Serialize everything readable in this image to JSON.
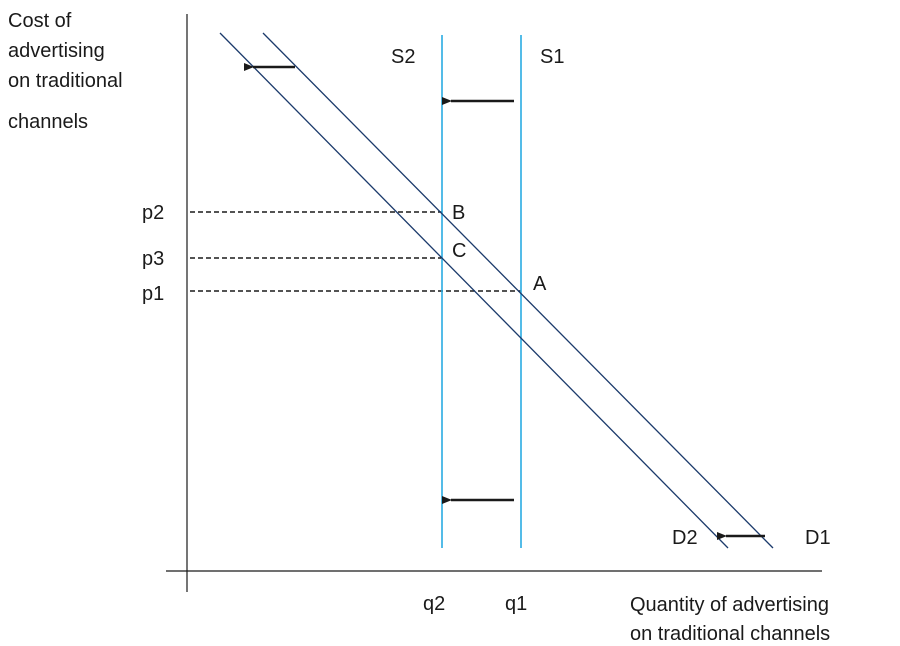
{
  "y_axis_label": [
    "Cost of",
    "advertising",
    "on traditional",
    "channels"
  ],
  "x_axis_label": [
    "Quantity of advertising",
    "on traditional channels"
  ],
  "prices": {
    "p2": "p2",
    "p3": "p3",
    "p1": "p1"
  },
  "quantities": {
    "q2": "q2",
    "q1": "q1"
  },
  "supply": {
    "s2": "S2",
    "s1": "S1"
  },
  "demand": {
    "d2": "D2",
    "d1": "D1"
  },
  "points": {
    "a": "A",
    "b": "B",
    "c": "C"
  },
  "colors": {
    "supply_line": "#29ABE2",
    "demand_line": "#1B3A6B",
    "axis": "#1a1a1a"
  }
}
